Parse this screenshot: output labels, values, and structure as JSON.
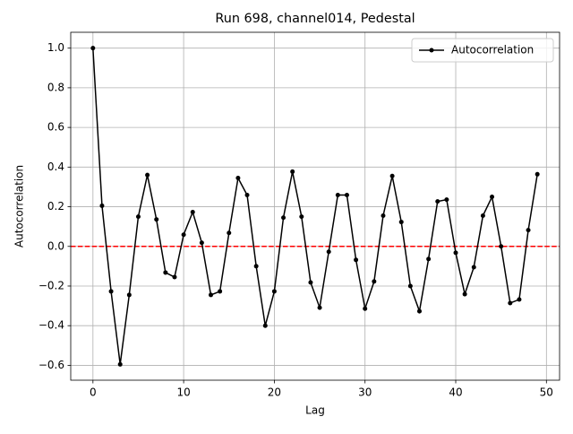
{
  "chart_data": {
    "type": "line",
    "title": "Run 698, channel014, Pedestal",
    "x_label": "Lag",
    "y_label": "Autocorrelation",
    "x": [
      0,
      1,
      2,
      3,
      4,
      5,
      6,
      7,
      8,
      9,
      10,
      11,
      12,
      13,
      14,
      15,
      16,
      17,
      18,
      19,
      20,
      21,
      22,
      23,
      24,
      25,
      26,
      27,
      28,
      29,
      30,
      31,
      32,
      33,
      34,
      35,
      36,
      37,
      38,
      39,
      40,
      41,
      42,
      43,
      44,
      45,
      46,
      47,
      48,
      49
    ],
    "series": [
      {
        "name": "Autocorrelation",
        "color": "#000000",
        "values": [
          1.0,
          0.205,
          -0.227,
          -0.595,
          -0.245,
          0.15,
          0.36,
          0.136,
          -0.132,
          -0.155,
          0.059,
          0.173,
          0.018,
          -0.245,
          -0.227,
          0.068,
          0.345,
          0.259,
          -0.1,
          -0.4,
          -0.227,
          0.145,
          0.377,
          0.15,
          -0.182,
          -0.309,
          -0.027,
          0.259,
          0.259,
          -0.068,
          -0.314,
          -0.177,
          0.155,
          0.355,
          0.123,
          -0.2,
          -0.327,
          -0.064,
          0.227,
          0.236,
          -0.032,
          -0.241,
          -0.105,
          0.155,
          0.25,
          0.0,
          -0.286,
          -0.268,
          0.082,
          0.364
        ]
      }
    ],
    "reference_line": {
      "y": 0,
      "color": "#ff0000"
    },
    "xlim": [
      -2.45,
      51.45
    ],
    "xticks": [
      0,
      10,
      20,
      30,
      40,
      50
    ],
    "ylim": [
      -0.675,
      1.08
    ],
    "yticks": [
      {
        "value": -0.6,
        "label": "−0.6"
      },
      {
        "value": -0.4,
        "label": "−0.4"
      },
      {
        "value": -0.2,
        "label": "−0.2"
      },
      {
        "value": 0,
        "label": "0.0"
      },
      {
        "value": 0.2,
        "label": "0.2"
      },
      {
        "value": 0.4,
        "label": "0.4"
      },
      {
        "value": 0.6,
        "label": "0.6"
      },
      {
        "value": 0.8,
        "label": "0.8"
      },
      {
        "value": 1.0,
        "label": "1.0"
      }
    ],
    "grid": true,
    "legend": "upper right"
  }
}
